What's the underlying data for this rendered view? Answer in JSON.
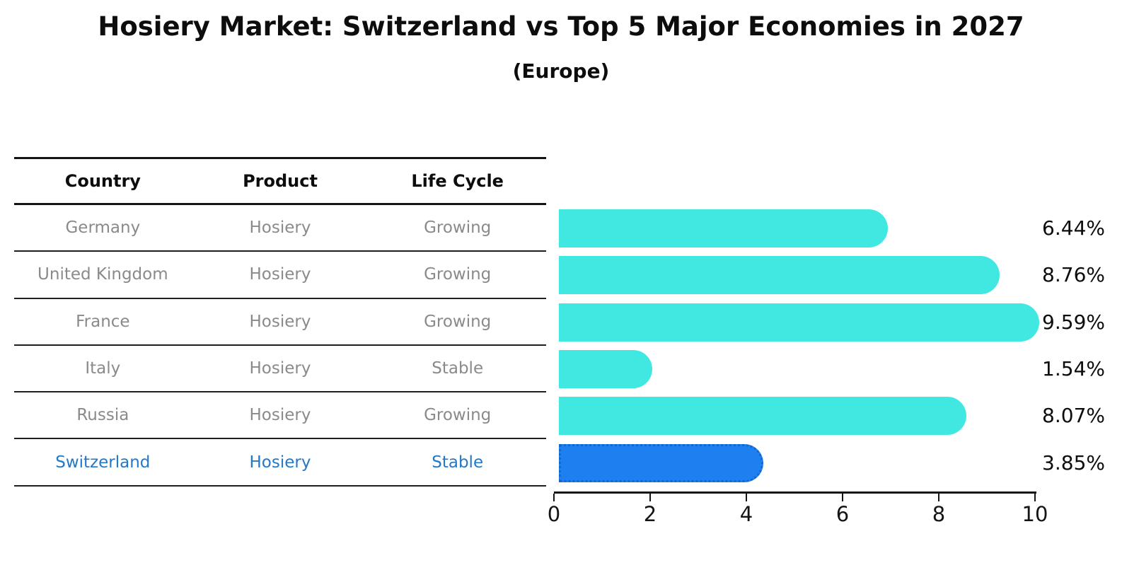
{
  "title": "Hosiery Market: Switzerland vs Top 5 Major Economies in 2027",
  "subtitle": "(Europe)",
  "table": {
    "headers": [
      "Country",
      "Product",
      "Life Cycle"
    ],
    "rows": [
      {
        "country": "Germany",
        "product": "Hosiery",
        "life_cycle": "Growing",
        "highlight": false
      },
      {
        "country": "United Kingdom",
        "product": "Hosiery",
        "life_cycle": "Growing",
        "highlight": false
      },
      {
        "country": "France",
        "product": "Hosiery",
        "life_cycle": "Growing",
        "highlight": false
      },
      {
        "country": "Italy",
        "product": "Hosiery",
        "life_cycle": "Stable",
        "highlight": false
      },
      {
        "country": "Russia",
        "product": "Hosiery",
        "life_cycle": "Growing",
        "highlight": false
      },
      {
        "country": "Switzerland",
        "product": "Hosiery",
        "life_cycle": "Stable",
        "highlight": true
      }
    ]
  },
  "chart_data": {
    "type": "bar",
    "orientation": "horizontal",
    "categories": [
      "Germany",
      "United Kingdom",
      "France",
      "Italy",
      "Russia",
      "Switzerland"
    ],
    "values": [
      6.44,
      8.76,
      9.59,
      1.54,
      8.07,
      3.85
    ],
    "value_labels": [
      "6.44%",
      "8.76%",
      "9.59%",
      "1.54%",
      "8.07%",
      "3.85%"
    ],
    "xlim": [
      0,
      10
    ],
    "x_ticks": [
      "0",
      "2",
      "4",
      "6",
      "8",
      "10"
    ],
    "grid": false,
    "legend": "none",
    "bar_color": "#40e8e1",
    "highlight_color": "#1e80f0",
    "highlight_border_color": "#1766cc",
    "highlight_index": 5,
    "highlight_text_color": "#2478c8",
    "row_text_color": "#8a8a8a"
  }
}
